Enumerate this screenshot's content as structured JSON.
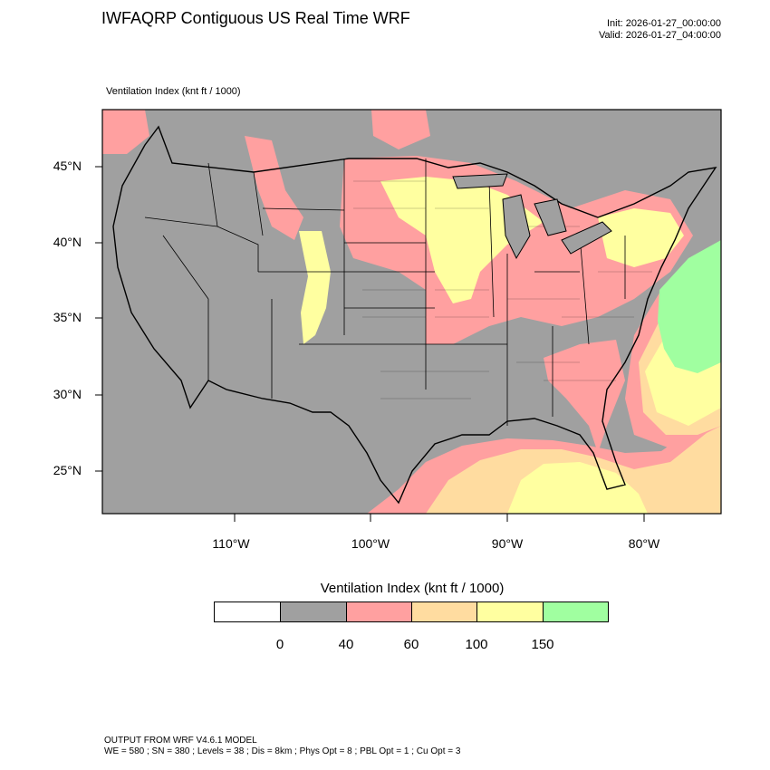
{
  "title": "IWFAQRP Contiguous US Real Time WRF",
  "init": "Init: 2026-01-27_00:00:00",
  "valid": "Valid: 2026-01-27_04:00:00",
  "field_label": "Ventilation Index   (knt ft / 1000)",
  "lat_labels": [
    "45°N",
    "40°N",
    "35°N",
    "30°N",
    "25°N"
  ],
  "lon_labels": [
    "110°W",
    "100°W",
    "90°W",
    "80°W"
  ],
  "colorbar": {
    "title": "Ventilation Index  (knt ft / 1000)",
    "colors": [
      "#ffffff",
      "#a0a0a0",
      "#ffa0a0",
      "#ffdca0",
      "#ffffa0",
      "#a0ffa0"
    ],
    "ticks": [
      "0",
      "40",
      "60",
      "100",
      "150"
    ]
  },
  "footer": {
    "line1": "OUTPUT FROM WRF V4.6.1 MODEL",
    "line2": "WE = 580 ; SN = 380 ; Levels = 38 ; Dis = 8km ; Phys Opt = 8 ; PBL Opt = 1 ; Cu Opt = 3"
  },
  "colors": {
    "gray": "#a0a0a0",
    "pink": "#ffa0a0",
    "orange": "#ffdca0",
    "yellow": "#ffffa0",
    "green": "#a0ffa0"
  }
}
